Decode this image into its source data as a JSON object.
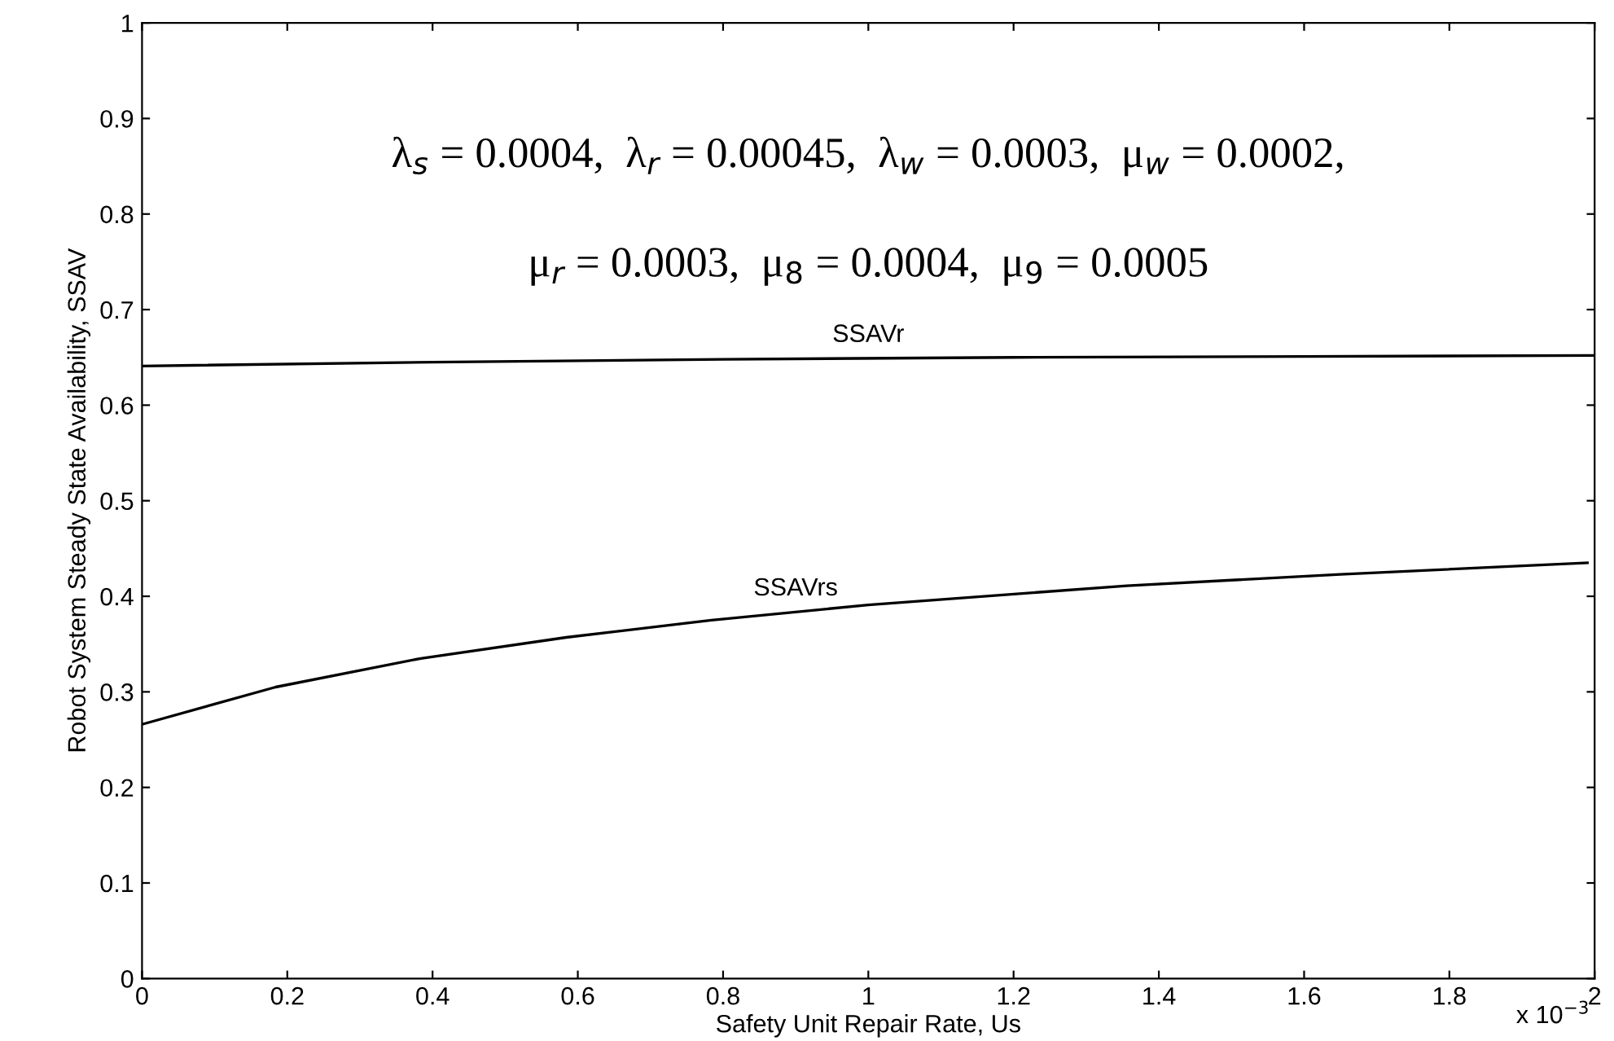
{
  "chart_data": {
    "type": "line",
    "xlabel": "Safety Unit Repair Rate, Us",
    "ylabel": "Robot System Steady State Availability, SSAV",
    "series": [
      {
        "name": "SSAVr",
        "color": "#000000",
        "x": [
          0,
          0.4,
          0.8,
          1.2,
          1.6,
          2.0
        ],
        "values": [
          0.641,
          0.645,
          0.648,
          0.65,
          0.651,
          0.652
        ]
      },
      {
        "name": "SSAVrs",
        "color": "#000000",
        "x": [
          0,
          0.184,
          0.384,
          0.584,
          0.784,
          1.0,
          1.356,
          1.65,
          1.99
        ],
        "values": [
          0.266,
          0.305,
          0.335,
          0.357,
          0.375,
          0.391,
          0.411,
          0.423,
          0.435
        ]
      }
    ],
    "annotations": [
      "λ$_{s}$ = 0.0004,  λ$_{r}$ = 0.00045,  λ$_{w}$ = 0.0003,  μ$_{w}$ = 0.0002,",
      "μ$_{r}$ = 0.0003,  μ$_{8}$ = 0.0004,  μ$_{9}$ = 0.0005",
      "x 10$^{−3}$"
    ],
    "xlim": [
      0,
      2
    ],
    "xticks": [
      0,
      0.2,
      0.4,
      0.6,
      0.8,
      1,
      1.2,
      1.4,
      1.6,
      1.8,
      2
    ],
    "ylim": [
      0,
      1
    ],
    "yticks": [
      0,
      0.1,
      0.2,
      0.3,
      0.4,
      0.5,
      0.6,
      0.7,
      0.8,
      0.9,
      1
    ],
    "grid": false,
    "legend": false,
    "marker": "none",
    "line_style": "solid"
  }
}
